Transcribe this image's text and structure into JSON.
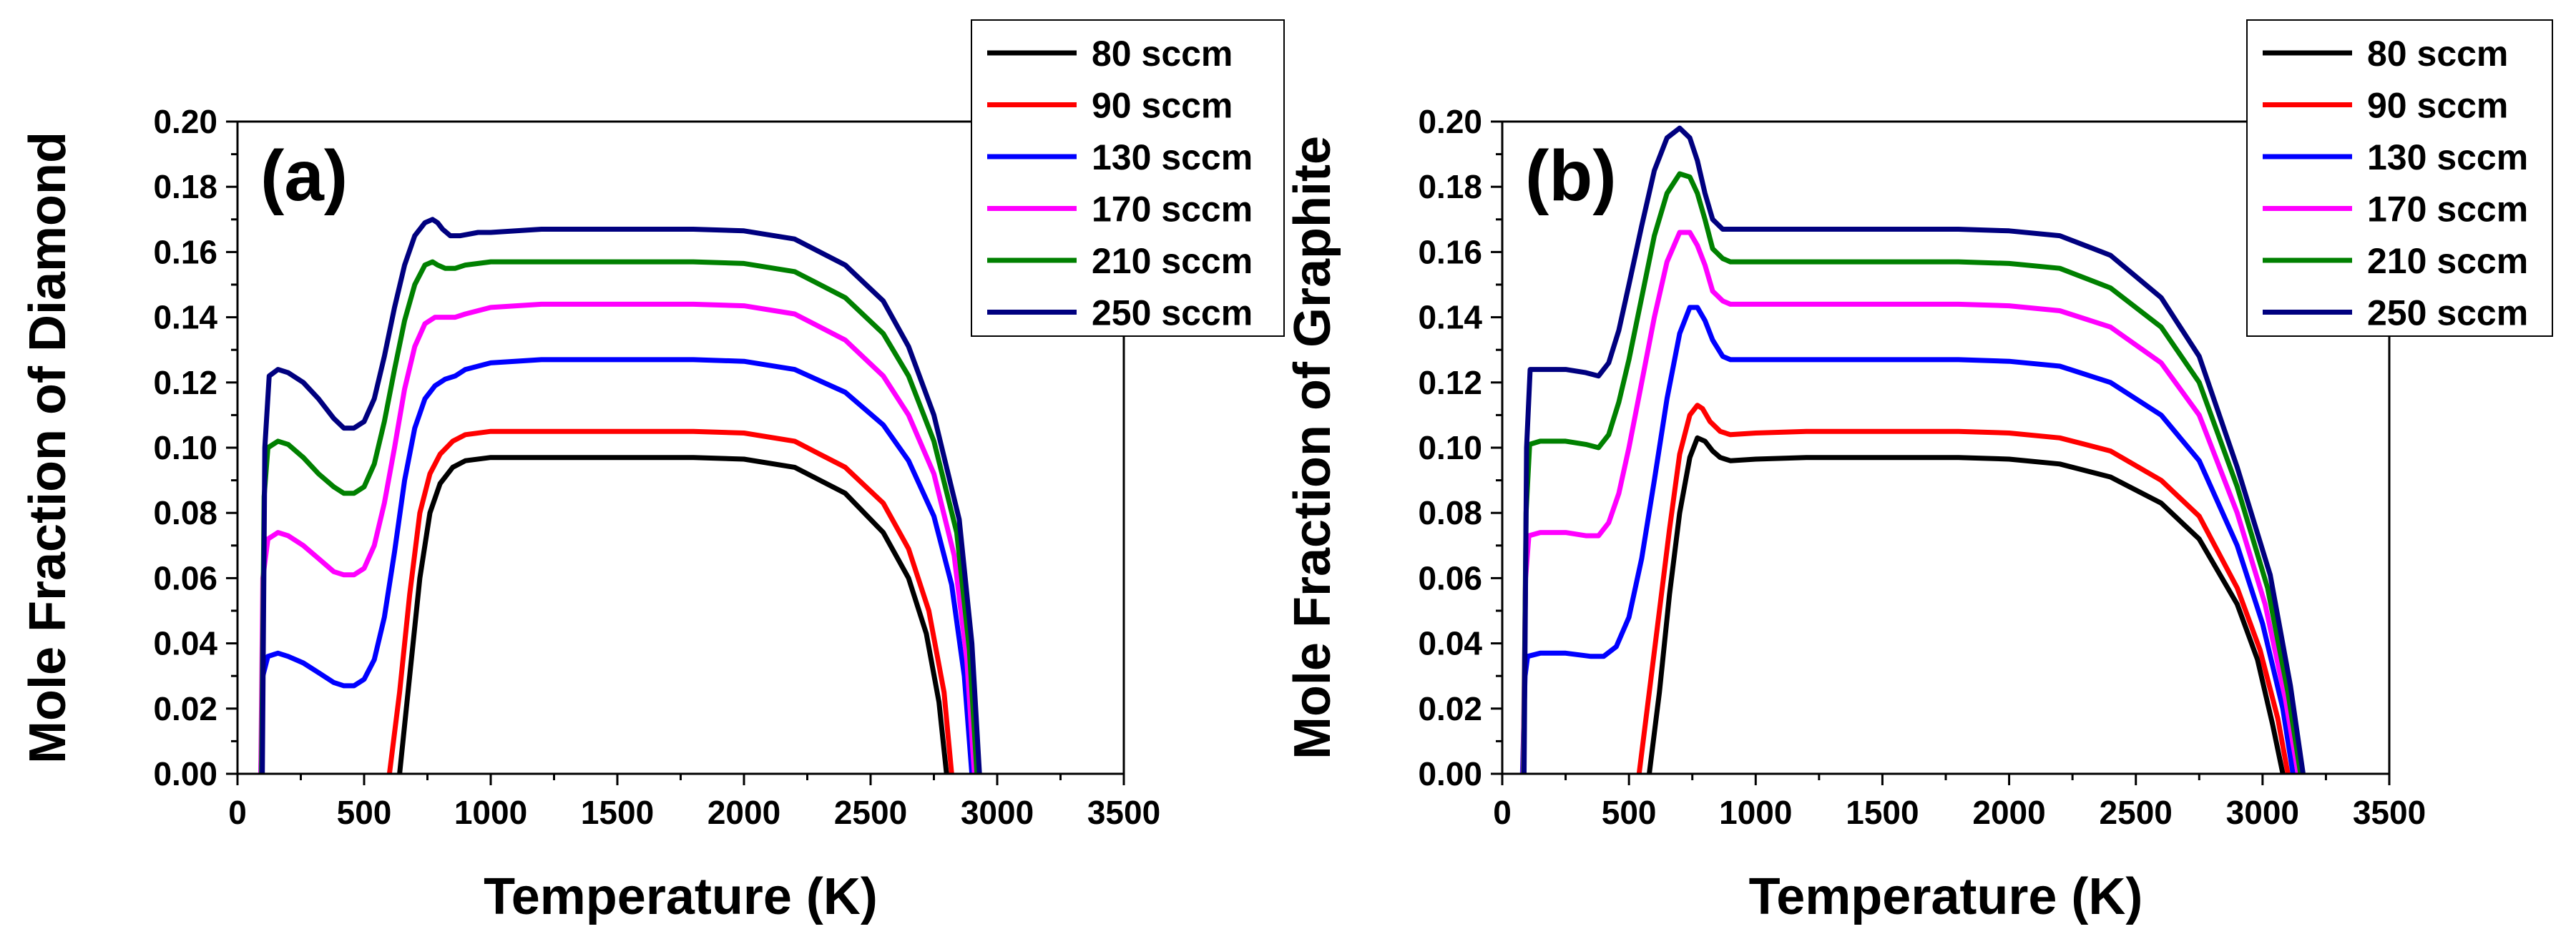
{
  "chart_data": [
    {
      "type": "line",
      "panel_label": "(a)",
      "xlabel": "Temperature (K)",
      "ylabel": "Mole Fraction of Diamond",
      "xlim": [
        0,
        3500
      ],
      "ylim": [
        0,
        0.2
      ],
      "xticks": [
        0,
        500,
        1000,
        1500,
        2000,
        2500,
        3000,
        3500
      ],
      "yticks": [
        0.0,
        0.02,
        0.04,
        0.06,
        0.08,
        0.1,
        0.12,
        0.14,
        0.16,
        0.18,
        0.2
      ],
      "xtick_labels": [
        "0",
        "500",
        "1000",
        "1500",
        "2000",
        "2500",
        "3000",
        "3500"
      ],
      "ytick_labels": [
        "0.00",
        "0.02",
        "0.04",
        "0.06",
        "0.08",
        "0.10",
        "0.12",
        "0.14",
        "0.16",
        "0.18",
        "0.20"
      ],
      "legend_position": "top-right",
      "series": [
        {
          "name": "80 sccm",
          "color": "#000000",
          "x": [
            640,
            680,
            720,
            760,
            800,
            850,
            900,
            1000,
            1200,
            1500,
            1800,
            2000,
            2200,
            2400,
            2550,
            2650,
            2720,
            2770,
            2800
          ],
          "y": [
            0.0,
            0.03,
            0.06,
            0.08,
            0.089,
            0.094,
            0.096,
            0.097,
            0.097,
            0.097,
            0.097,
            0.0965,
            0.094,
            0.086,
            0.074,
            0.06,
            0.043,
            0.022,
            0.0
          ]
        },
        {
          "name": "90 sccm",
          "color": "#ff0000",
          "x": [
            600,
            640,
            680,
            720,
            760,
            800,
            850,
            900,
            1000,
            1200,
            1500,
            1800,
            2000,
            2200,
            2400,
            2550,
            2650,
            2730,
            2790,
            2820
          ],
          "y": [
            0.0,
            0.025,
            0.055,
            0.08,
            0.092,
            0.098,
            0.102,
            0.104,
            0.105,
            0.105,
            0.105,
            0.105,
            0.1045,
            0.102,
            0.094,
            0.083,
            0.069,
            0.05,
            0.025,
            0.0
          ]
        },
        {
          "name": "130 sccm",
          "color": "#0000ff",
          "x": [
            92,
            100,
            120,
            160,
            200,
            260,
            320,
            380,
            420,
            460,
            500,
            540,
            580,
            620,
            660,
            700,
            740,
            780,
            820,
            860,
            900,
            1000,
            1200,
            1500,
            1800,
            2000,
            2200,
            2400,
            2550,
            2650,
            2750,
            2820,
            2870,
            2900
          ],
          "y": [
            0.0,
            0.03,
            0.036,
            0.037,
            0.036,
            0.034,
            0.031,
            0.028,
            0.027,
            0.027,
            0.029,
            0.035,
            0.048,
            0.068,
            0.09,
            0.106,
            0.115,
            0.119,
            0.121,
            0.122,
            0.124,
            0.126,
            0.127,
            0.127,
            0.127,
            0.1265,
            0.124,
            0.117,
            0.107,
            0.096,
            0.079,
            0.058,
            0.03,
            0.0
          ]
        },
        {
          "name": "170 sccm",
          "color": "#ff00ff",
          "x": [
            92,
            100,
            120,
            160,
            200,
            260,
            320,
            380,
            420,
            460,
            500,
            540,
            580,
            620,
            660,
            700,
            740,
            780,
            820,
            860,
            900,
            1000,
            1200,
            1500,
            1800,
            2000,
            2200,
            2400,
            2550,
            2650,
            2750,
            2830,
            2880,
            2910
          ],
          "y": [
            0.0,
            0.06,
            0.072,
            0.074,
            0.073,
            0.07,
            0.066,
            0.062,
            0.061,
            0.061,
            0.063,
            0.07,
            0.083,
            0.1,
            0.118,
            0.131,
            0.138,
            0.14,
            0.14,
            0.14,
            0.141,
            0.143,
            0.144,
            0.144,
            0.144,
            0.1435,
            0.141,
            0.133,
            0.122,
            0.11,
            0.092,
            0.067,
            0.035,
            0.0
          ]
        },
        {
          "name": "210 sccm",
          "color": "#008000",
          "x": [
            95,
            105,
            120,
            160,
            200,
            260,
            320,
            380,
            420,
            460,
            500,
            540,
            580,
            620,
            660,
            700,
            740,
            770,
            790,
            820,
            860,
            900,
            1000,
            1200,
            1500,
            1800,
            2000,
            2200,
            2400,
            2550,
            2650,
            2750,
            2840,
            2890,
            2920
          ],
          "y": [
            0.0,
            0.085,
            0.1,
            0.102,
            0.101,
            0.097,
            0.092,
            0.088,
            0.086,
            0.086,
            0.088,
            0.095,
            0.108,
            0.124,
            0.139,
            0.15,
            0.156,
            0.157,
            0.156,
            0.155,
            0.155,
            0.156,
            0.157,
            0.157,
            0.157,
            0.157,
            0.1565,
            0.154,
            0.146,
            0.135,
            0.122,
            0.102,
            0.074,
            0.038,
            0.0
          ]
        },
        {
          "name": "250 sccm",
          "color": "#00007f",
          "x": [
            98,
            108,
            125,
            160,
            200,
            260,
            320,
            380,
            420,
            460,
            500,
            540,
            580,
            620,
            660,
            700,
            740,
            770,
            790,
            810,
            840,
            880,
            950,
            1000,
            1200,
            1500,
            1800,
            2000,
            2200,
            2400,
            2550,
            2650,
            2750,
            2850,
            2900,
            2930
          ],
          "y": [
            0.0,
            0.1,
            0.122,
            0.124,
            0.123,
            0.12,
            0.115,
            0.109,
            0.106,
            0.106,
            0.108,
            0.115,
            0.128,
            0.143,
            0.156,
            0.165,
            0.169,
            0.17,
            0.169,
            0.167,
            0.165,
            0.165,
            0.166,
            0.166,
            0.167,
            0.167,
            0.167,
            0.1665,
            0.164,
            0.156,
            0.145,
            0.131,
            0.11,
            0.078,
            0.04,
            0.0
          ]
        }
      ]
    },
    {
      "type": "line",
      "panel_label": "(b)",
      "xlabel": "Temperature (K)",
      "ylabel": "Mole Fraction of Graphite",
      "xlim": [
        0,
        3500
      ],
      "ylim": [
        0,
        0.2
      ],
      "xticks": [
        0,
        500,
        1000,
        1500,
        2000,
        2500,
        3000,
        3500
      ],
      "yticks": [
        0.0,
        0.02,
        0.04,
        0.06,
        0.08,
        0.1,
        0.12,
        0.14,
        0.16,
        0.18,
        0.2
      ],
      "xtick_labels": [
        "0",
        "500",
        "1000",
        "1500",
        "2000",
        "2500",
        "3000",
        "3500"
      ],
      "ytick_labels": [
        "0.00",
        "0.02",
        "0.04",
        "0.06",
        "0.08",
        "0.10",
        "0.12",
        "0.14",
        "0.16",
        "0.18",
        "0.20"
      ],
      "legend_position": "top-right",
      "series": [
        {
          "name": "80 sccm",
          "color": "#000000",
          "x": [
            580,
            620,
            660,
            700,
            740,
            770,
            800,
            830,
            860,
            900,
            1000,
            1200,
            1500,
            1800,
            2000,
            2200,
            2400,
            2600,
            2750,
            2900,
            2980,
            3040,
            3080
          ],
          "y": [
            0.0,
            0.025,
            0.055,
            0.08,
            0.097,
            0.103,
            0.102,
            0.099,
            0.097,
            0.096,
            0.0965,
            0.097,
            0.097,
            0.097,
            0.0965,
            0.095,
            0.091,
            0.083,
            0.072,
            0.052,
            0.035,
            0.015,
            0.0
          ]
        },
        {
          "name": "90 sccm",
          "color": "#ff0000",
          "x": [
            540,
            580,
            620,
            660,
            700,
            740,
            770,
            790,
            820,
            860,
            900,
            1000,
            1200,
            1500,
            1800,
            2000,
            2200,
            2400,
            2600,
            2750,
            2900,
            2990,
            3060,
            3100
          ],
          "y": [
            0.0,
            0.025,
            0.05,
            0.075,
            0.098,
            0.11,
            0.113,
            0.112,
            0.108,
            0.105,
            0.104,
            0.1045,
            0.105,
            0.105,
            0.105,
            0.1045,
            0.103,
            0.099,
            0.09,
            0.079,
            0.057,
            0.038,
            0.017,
            0.0
          ]
        },
        {
          "name": "130 sccm",
          "color": "#0000ff",
          "x": [
            80,
            90,
            100,
            150,
            250,
            350,
            400,
            450,
            500,
            550,
            600,
            650,
            700,
            740,
            770,
            800,
            830,
            870,
            900,
            1000,
            1200,
            1500,
            1800,
            2000,
            2200,
            2400,
            2600,
            2750,
            2900,
            3000,
            3080,
            3120
          ],
          "y": [
            0.0,
            0.03,
            0.036,
            0.037,
            0.037,
            0.036,
            0.036,
            0.039,
            0.048,
            0.066,
            0.09,
            0.115,
            0.135,
            0.143,
            0.143,
            0.139,
            0.133,
            0.128,
            0.127,
            0.127,
            0.127,
            0.127,
            0.127,
            0.1265,
            0.125,
            0.12,
            0.11,
            0.096,
            0.07,
            0.046,
            0.02,
            0.0
          ]
        },
        {
          "name": "170 sccm",
          "color": "#ff00ff",
          "x": [
            82,
            92,
            105,
            150,
            250,
            330,
            380,
            420,
            460,
            500,
            550,
            600,
            650,
            700,
            740,
            770,
            800,
            830,
            870,
            900,
            1000,
            1200,
            1500,
            1800,
            2000,
            2200,
            2400,
            2600,
            2750,
            2900,
            3010,
            3090,
            3140
          ],
          "y": [
            0.0,
            0.06,
            0.073,
            0.074,
            0.074,
            0.073,
            0.073,
            0.077,
            0.086,
            0.1,
            0.12,
            0.14,
            0.157,
            0.166,
            0.166,
            0.162,
            0.156,
            0.148,
            0.145,
            0.144,
            0.144,
            0.144,
            0.144,
            0.144,
            0.1435,
            0.142,
            0.137,
            0.126,
            0.11,
            0.08,
            0.052,
            0.023,
            0.0
          ]
        },
        {
          "name": "210 sccm",
          "color": "#008000",
          "x": [
            84,
            94,
            108,
            150,
            250,
            330,
            380,
            420,
            460,
            500,
            550,
            600,
            650,
            700,
            740,
            770,
            800,
            830,
            870,
            900,
            1000,
            1200,
            1500,
            1800,
            2000,
            2200,
            2400,
            2600,
            2750,
            2900,
            3020,
            3100,
            3150
          ],
          "y": [
            0.0,
            0.08,
            0.101,
            0.102,
            0.102,
            0.101,
            0.1,
            0.104,
            0.114,
            0.127,
            0.146,
            0.165,
            0.178,
            0.184,
            0.183,
            0.178,
            0.17,
            0.161,
            0.158,
            0.157,
            0.157,
            0.157,
            0.157,
            0.157,
            0.1565,
            0.155,
            0.149,
            0.137,
            0.12,
            0.088,
            0.057,
            0.025,
            0.0
          ]
        },
        {
          "name": "250 sccm",
          "color": "#00007f",
          "x": [
            86,
            96,
            110,
            150,
            250,
            330,
            380,
            420,
            460,
            500,
            550,
            600,
            650,
            700,
            740,
            770,
            800,
            830,
            870,
            900,
            1000,
            1200,
            1500,
            1800,
            2000,
            2200,
            2400,
            2600,
            2750,
            2900,
            3030,
            3110,
            3160
          ],
          "y": [
            0.0,
            0.1,
            0.124,
            0.124,
            0.124,
            0.123,
            0.122,
            0.126,
            0.136,
            0.15,
            0.168,
            0.185,
            0.195,
            0.198,
            0.195,
            0.188,
            0.178,
            0.17,
            0.167,
            0.167,
            0.167,
            0.167,
            0.167,
            0.167,
            0.1665,
            0.165,
            0.159,
            0.146,
            0.128,
            0.094,
            0.061,
            0.027,
            0.0
          ]
        }
      ]
    }
  ]
}
